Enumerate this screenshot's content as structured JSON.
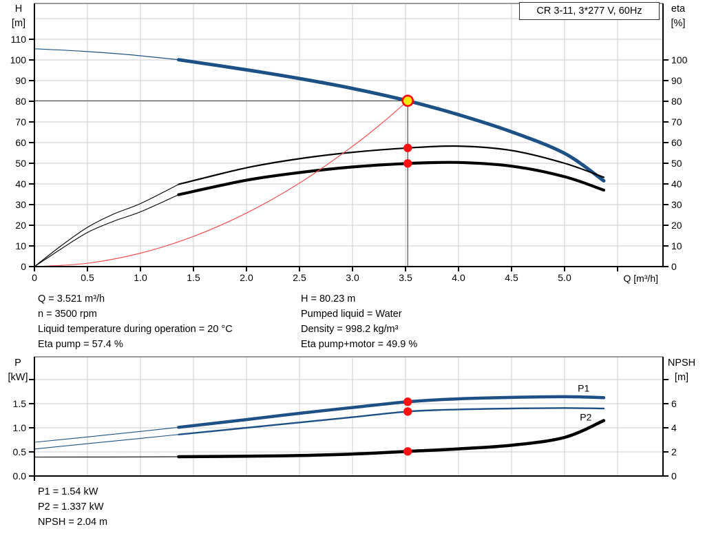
{
  "title_box": "CR 3-11, 3*277 V, 60Hz",
  "annotations": {
    "top_left": [
      "Q = 3.521 m³/h",
      "n = 3500 rpm",
      "Liquid temperature during operation = 20 °C",
      "Eta pump = 57.4 %"
    ],
    "top_right": [
      "H = 80.23 m",
      "Pumped liquid = Water",
      "Density = 998.2 kg/m³",
      "Eta pump+motor = 49.9 %"
    ],
    "bottom": [
      "P1 = 1.54 kW",
      "P2 = 1.337 kW",
      "NPSH = 2.04 m"
    ]
  },
  "colors": {
    "blue": "#1d5186",
    "black": "#000000",
    "red": "#f25050",
    "dot_red": "#ff1212",
    "duty_fill": "#ffe60a",
    "duty_ring": "#ff0000",
    "grid": "#cdcdcd",
    "marker_line": "#4f4f4f",
    "frame": "#9a9a9a",
    "axis": "#000000"
  },
  "chart_data": [
    {
      "type": "line",
      "title": "Pump head and efficiency vs flow",
      "x": {
        "label": "Q [m³/h]",
        "min": 0,
        "max": 5.93,
        "ticks": [
          [
            0,
            "0"
          ],
          [
            0.5,
            "0.5"
          ],
          [
            1,
            "1.0"
          ],
          [
            1.5,
            "1.5"
          ],
          [
            2,
            "2.0"
          ],
          [
            2.5,
            "2.5"
          ],
          [
            3,
            "3.0"
          ],
          [
            3.5,
            "3.5"
          ],
          [
            4,
            "4.0"
          ],
          [
            4.5,
            "4.5"
          ],
          [
            5,
            "5.0"
          ],
          [
            5.5,
            ""
          ]
        ],
        "grid": [
          0.5,
          1,
          1.5,
          2,
          2.5,
          3,
          3.5,
          4,
          4.5,
          5,
          5.5
        ]
      },
      "y_left": {
        "label": [
          "H",
          "[m]"
        ],
        "min": 0,
        "max": 127,
        "ticks": [
          [
            0,
            "0"
          ],
          [
            10,
            "10"
          ],
          [
            20,
            "20"
          ],
          [
            30,
            "30"
          ],
          [
            40,
            "40"
          ],
          [
            50,
            "50"
          ],
          [
            60,
            "60"
          ],
          [
            70,
            "70"
          ],
          [
            80,
            "80"
          ],
          [
            90,
            "90"
          ],
          [
            100,
            "100"
          ],
          [
            110,
            "110"
          ]
        ],
        "grid": [
          10,
          20,
          30,
          40,
          50,
          60,
          70,
          80,
          90,
          100,
          110,
          120
        ]
      },
      "y_right": {
        "label": [
          "eta",
          "[%]"
        ],
        "min": 0,
        "max": 127,
        "ticks": [
          [
            0,
            "0"
          ],
          [
            10,
            "10"
          ],
          [
            20,
            "20"
          ],
          [
            30,
            "30"
          ],
          [
            40,
            "40"
          ],
          [
            50,
            "50"
          ],
          [
            60,
            "60"
          ],
          [
            70,
            "70"
          ],
          [
            80,
            "80"
          ],
          [
            90,
            "90"
          ],
          [
            100,
            "100"
          ]
        ]
      },
      "series": [
        {
          "name": "head-curve-lead",
          "axis": "left",
          "color": "blue",
          "width": 1.2,
          "interactable": false,
          "points": [
            [
              0,
              105.4
            ],
            [
              0.45,
              104.2
            ],
            [
              0.9,
              102.5
            ],
            [
              1.36,
              100.1
            ]
          ]
        },
        {
          "name": "head-curve",
          "axis": "left",
          "color": "blue",
          "width": 5,
          "interactable": true,
          "points": [
            [
              1.36,
              100.1
            ],
            [
              2,
              95.2
            ],
            [
              2.5,
              91.0
            ],
            [
              3,
              86.2
            ],
            [
              3.521,
              80.23
            ],
            [
              4,
              73.5
            ],
            [
              4.5,
              65.2
            ],
            [
              5,
              54.8
            ],
            [
              5.37,
              41.5
            ]
          ]
        },
        {
          "name": "eta-pump-lead",
          "axis": "right",
          "color": "black",
          "width": 1.1,
          "interactable": false,
          "points": [
            [
              0,
              0
            ],
            [
              0.25,
              10
            ],
            [
              0.5,
              19
            ],
            [
              0.75,
              25.5
            ],
            [
              1,
              30.5
            ],
            [
              1.36,
              39.8
            ]
          ]
        },
        {
          "name": "eta-pump-curve",
          "axis": "right",
          "color": "black",
          "width": 2.2,
          "interactable": true,
          "points": [
            [
              1.36,
              39.8
            ],
            [
              2,
              47.8
            ],
            [
              2.5,
              52.2
            ],
            [
              3,
              55.3
            ],
            [
              3.521,
              57.4
            ],
            [
              4,
              58.3
            ],
            [
              4.5,
              56.2
            ],
            [
              5,
              50.0
            ],
            [
              5.37,
              43.2
            ]
          ]
        },
        {
          "name": "eta-pump-motor-lead",
          "axis": "right",
          "color": "black",
          "width": 1.1,
          "interactable": false,
          "points": [
            [
              0,
              0
            ],
            [
              0.25,
              8.5
            ],
            [
              0.5,
              16.5
            ],
            [
              0.75,
              22
            ],
            [
              1,
              26.5
            ],
            [
              1.36,
              34.8
            ]
          ]
        },
        {
          "name": "eta-pump-motor-curve",
          "axis": "right",
          "color": "black",
          "width": 4.2,
          "interactable": true,
          "points": [
            [
              1.36,
              34.8
            ],
            [
              2,
              41.8
            ],
            [
              2.5,
              45.5
            ],
            [
              3,
              48.2
            ],
            [
              3.521,
              49.9
            ],
            [
              4,
              50.4
            ],
            [
              4.5,
              48.6
            ],
            [
              5,
              43.5
            ],
            [
              5.37,
              37.0
            ]
          ]
        },
        {
          "name": "system-curve",
          "axis": "left",
          "color": "red",
          "width": 1.2,
          "interactable": false,
          "points": [
            [
              0,
              0
            ],
            [
              0.5,
              1.6
            ],
            [
              1,
              6.5
            ],
            [
              1.5,
              14.6
            ],
            [
              2,
              25.9
            ],
            [
              2.5,
              40.4
            ],
            [
              3,
              58.2
            ],
            [
              3.3,
              70.4
            ],
            [
              3.521,
              80.23
            ]
          ]
        }
      ],
      "duty": {
        "q": 3.521,
        "h": 80.23
      },
      "markers": [
        {
          "q": 3.521,
          "v": 80.23,
          "axis": "left",
          "style": "duty",
          "name": "duty-point"
        },
        {
          "q": 3.521,
          "v": 57.4,
          "axis": "right",
          "style": "dot",
          "name": "eta-pump-duty-dot"
        },
        {
          "q": 3.521,
          "v": 49.9,
          "axis": "right",
          "style": "dot",
          "name": "eta-pump-motor-duty-dot"
        }
      ],
      "curve_labels": []
    },
    {
      "type": "line",
      "title": "Power and NPSH vs flow",
      "x": {
        "label": "",
        "min": 0,
        "max": 5.93,
        "ticks": [
          [
            0,
            ""
          ]
        ],
        "grid": [
          0.5,
          1,
          1.5,
          2,
          2.5,
          3,
          3.5,
          4,
          4.5,
          5,
          5.5
        ]
      },
      "y_left": {
        "label": [
          "P",
          "[kW]"
        ],
        "min": 0,
        "max": 2.47,
        "ticks": [
          [
            0,
            "0.0"
          ],
          [
            0.5,
            "0.5"
          ],
          [
            1,
            "1.0"
          ],
          [
            1.5,
            "1.5"
          ],
          [
            2,
            ""
          ]
        ],
        "grid": [
          0.5,
          1,
          1.5,
          2
        ]
      },
      "y_right": {
        "label": [
          "NPSH",
          "[m]"
        ],
        "min": 0,
        "max": 9.9,
        "ticks": [
          [
            0,
            "0"
          ],
          [
            2,
            "2"
          ],
          [
            4,
            "4"
          ],
          [
            6,
            "6"
          ],
          [
            8,
            ""
          ]
        ]
      },
      "series": [
        {
          "name": "p1-curve-lead",
          "axis": "left",
          "color": "blue",
          "width": 1.1,
          "interactable": false,
          "points": [
            [
              0,
              0.7
            ],
            [
              0.5,
              0.81
            ],
            [
              1,
              0.925
            ],
            [
              1.36,
              1.01
            ]
          ]
        },
        {
          "name": "p1-curve",
          "axis": "left",
          "color": "blue",
          "width": 4.5,
          "interactable": true,
          "points": [
            [
              1.36,
              1.01
            ],
            [
              2,
              1.17
            ],
            [
              2.5,
              1.3
            ],
            [
              3,
              1.42
            ],
            [
              3.521,
              1.54
            ],
            [
              4,
              1.6
            ],
            [
              4.5,
              1.63
            ],
            [
              5,
              1.645
            ],
            [
              5.37,
              1.625
            ]
          ]
        },
        {
          "name": "p2-curve-lead",
          "axis": "left",
          "color": "blue",
          "width": 1.1,
          "interactable": false,
          "points": [
            [
              0,
              0.56
            ],
            [
              0.5,
              0.67
            ],
            [
              1,
              0.78
            ],
            [
              1.36,
              0.86
            ]
          ]
        },
        {
          "name": "p2-curve",
          "axis": "left",
          "color": "blue",
          "width": 2.4,
          "interactable": true,
          "points": [
            [
              1.36,
              0.86
            ],
            [
              2,
              1.0
            ],
            [
              2.5,
              1.11
            ],
            [
              3,
              1.22
            ],
            [
              3.521,
              1.337
            ],
            [
              4,
              1.38
            ],
            [
              4.5,
              1.4
            ],
            [
              5,
              1.41
            ],
            [
              5.37,
              1.4
            ]
          ]
        },
        {
          "name": "npsh-curve-lead",
          "axis": "right",
          "color": "black",
          "width": 1.1,
          "interactable": false,
          "points": [
            [
              0,
              1.57
            ],
            [
              0.7,
              1.58
            ],
            [
              1.36,
              1.6
            ]
          ]
        },
        {
          "name": "npsh-curve",
          "axis": "right",
          "color": "black",
          "width": 4.5,
          "interactable": true,
          "points": [
            [
              1.36,
              1.6
            ],
            [
              2,
              1.64
            ],
            [
              2.5,
              1.7
            ],
            [
              3,
              1.82
            ],
            [
              3.521,
              2.04
            ],
            [
              4,
              2.25
            ],
            [
              4.5,
              2.55
            ],
            [
              5,
              3.2
            ],
            [
              5.37,
              4.6
            ]
          ]
        }
      ],
      "markers": [
        {
          "q": 3.521,
          "v": 1.54,
          "axis": "left",
          "style": "dot",
          "name": "p1-duty-dot"
        },
        {
          "q": 3.521,
          "v": 1.337,
          "axis": "left",
          "style": "dot",
          "name": "p2-duty-dot"
        },
        {
          "q": 3.521,
          "v": 2.04,
          "axis": "right",
          "style": "dot",
          "name": "npsh-duty-dot"
        }
      ],
      "curve_labels": [
        {
          "text": "P1",
          "q": 5.18,
          "v": 1.82,
          "axis": "left",
          "name": "p1-curve-label"
        },
        {
          "text": "P2",
          "q": 5.2,
          "v": 1.22,
          "axis": "left",
          "name": "p2-curve-label"
        }
      ]
    }
  ]
}
